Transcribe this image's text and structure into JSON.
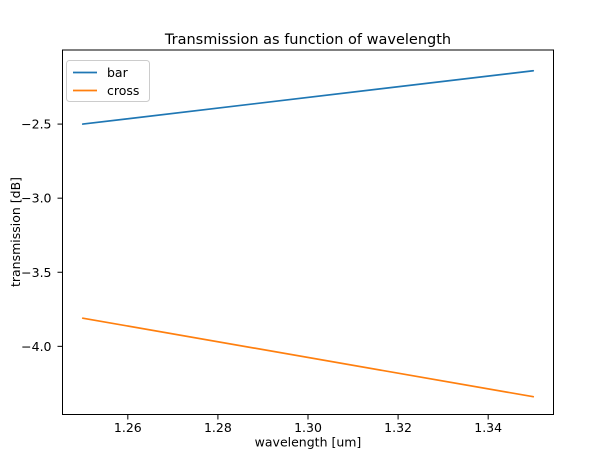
{
  "figure": {
    "background": "#ffffff",
    "spine_color": "#000000",
    "tick_color": "#000000",
    "text_color": "#000000"
  },
  "chart_data": {
    "type": "line",
    "title": "Transmission as function of wavelength",
    "xlabel": "wavelength [um]",
    "ylabel": "transmission [dB]",
    "xlim": [
      1.2455,
      1.3545
    ],
    "ylim": [
      -4.46,
      -2.0
    ],
    "xticks": [
      1.26,
      1.28,
      1.3,
      1.32,
      1.34
    ],
    "xtick_labels": [
      "1.26",
      "1.28",
      "1.30",
      "1.32",
      "1.34"
    ],
    "yticks": [
      -2.5,
      -3.0,
      -3.5,
      -4.0
    ],
    "ytick_labels": [
      "−2.5",
      "−3.0",
      "−3.5",
      "−4.0"
    ],
    "grid": false,
    "line_width": 1.7,
    "legend_position": "upper left",
    "legend": {
      "border_color": "#cccccc",
      "background": "#ffffff",
      "opacity": 0.9
    },
    "series": [
      {
        "name": "bar",
        "color": "#1f77b4",
        "x": [
          1.25,
          1.35
        ],
        "y": [
          -2.5,
          -2.14
        ]
      },
      {
        "name": "cross",
        "color": "#ff7f0e",
        "x": [
          1.25,
          1.35
        ],
        "y": [
          -3.81,
          -4.34
        ]
      }
    ]
  }
}
